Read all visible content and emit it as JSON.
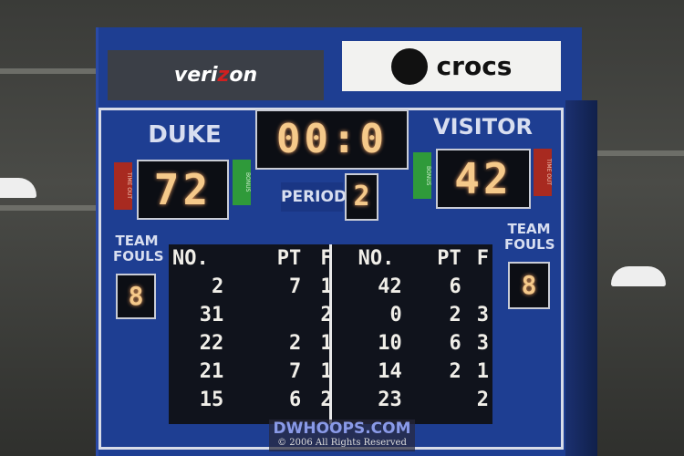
{
  "sponsors": {
    "left": {
      "pre": "veri",
      "z": "z",
      "post": "on"
    },
    "right": "crocs"
  },
  "home": {
    "name": "DUKE",
    "score": "72",
    "timeout_label": "TIME OUT",
    "bonus_label": "BONUS",
    "team_fouls_label": "TEAM FOULS",
    "team_fouls": "8"
  },
  "visitor": {
    "name": "VISITOR",
    "score": "42",
    "timeout_label": "TIME OUT",
    "bonus_label": "BONUS",
    "team_fouls_label": "TEAM FOULS",
    "team_fouls": "8"
  },
  "clock": "00:0",
  "period": {
    "label": "PERIOD",
    "value": "2"
  },
  "players": {
    "headers": [
      "NO.",
      "PT",
      "F",
      "NO.",
      "PT",
      "F"
    ],
    "rows": [
      [
        "2",
        "7",
        "1",
        "42",
        "6",
        ""
      ],
      [
        "31",
        "",
        "2",
        "0",
        "2",
        "3"
      ],
      [
        "22",
        "2",
        "1",
        "10",
        "6",
        "3"
      ],
      [
        "21",
        "7",
        "1",
        "14",
        "2",
        "1"
      ],
      [
        "15",
        "6",
        "2",
        "23",
        "",
        "2"
      ]
    ]
  },
  "watermark": {
    "site": "DWHOOPS.COM",
    "copyright": "© 2006 All Rights Reserved"
  }
}
